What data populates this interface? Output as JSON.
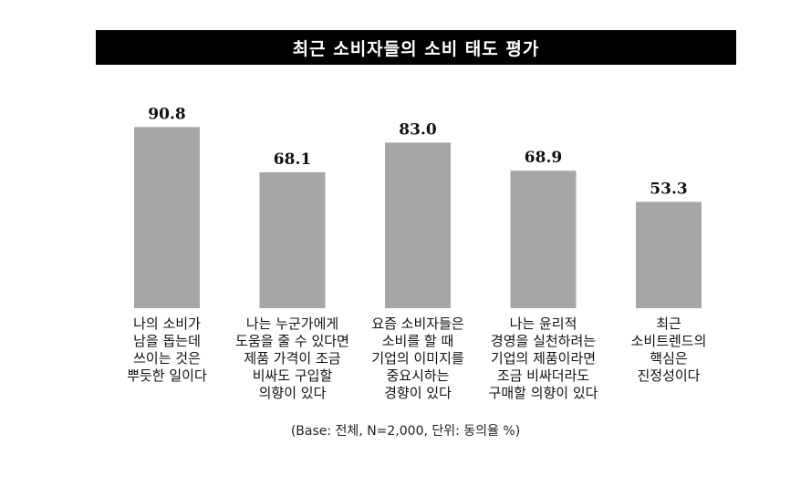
{
  "chart_data": {
    "type": "bar",
    "title": "최근 소비자들의 소비 태도 평가",
    "categories": [
      "나의 소비가\n남을 돕는데\n쓰이는 것은\n뿌듯한 일이다",
      "나는 누군가에게\n도움을 줄 수 있다면\n제품 가격이 조금\n비싸도 구입할\n의향이 있다",
      "요즘 소비자들은\n소비를 할 때\n기업의 이미지를\n중요시하는\n경향이 있다",
      "나는 윤리적\n경영을 실천하려는\n기업의 제품이라면\n조금 비싸더라도\n구매할 의향이 있다",
      "최근\n소비트렌드의\n핵심은\n진정성이다"
    ],
    "values": [
      90.8,
      68.1,
      83.0,
      68.9,
      53.3
    ],
    "value_labels": [
      "90.8",
      "68.1",
      "83.0",
      "68.9",
      "53.3"
    ],
    "ylim": [
      0,
      100
    ],
    "bar_color": "#a6a6a6",
    "grid": false,
    "note": "(Base: 전체, N=2,000, 단위: 동의율 %)"
  }
}
